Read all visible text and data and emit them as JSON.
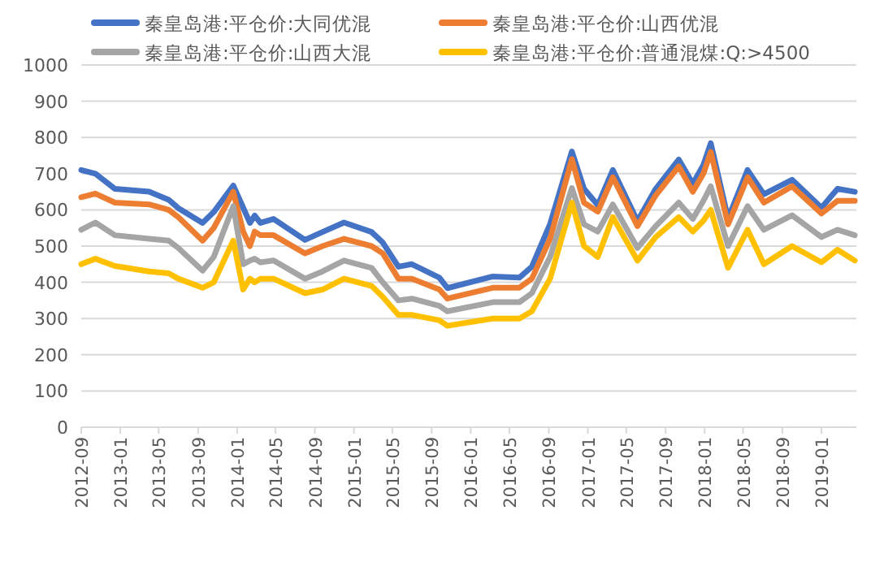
{
  "chart_data": {
    "type": "line",
    "x": [
      "2012-09-01",
      "2012-10-15",
      "2012-12-15",
      "2013-04-01",
      "2013-06-01",
      "2013-07-01",
      "2013-09-15",
      "2013-10-20",
      "2013-12-20",
      "2014-01-20",
      "2014-02-10",
      "2014-02-25",
      "2014-03-15",
      "2014-04-25",
      "2014-08-01",
      "2014-09-25",
      "2014-12-01",
      "2015-02-25",
      "2015-04-01",
      "2015-05-20",
      "2015-07-01",
      "2015-09-25",
      "2015-10-20",
      "2016-03-10",
      "2016-06-01",
      "2016-07-10",
      "2016-09-05",
      "2016-11-12",
      "2016-12-20",
      "2017-02-01",
      "2017-03-20",
      "2017-06-05",
      "2017-08-01",
      "2017-10-12",
      "2017-11-25",
      "2017-12-28",
      "2018-01-20",
      "2018-03-15",
      "2018-05-15",
      "2018-07-05",
      "2018-10-01",
      "2019-01-01",
      "2019-02-20",
      "2019-04-15"
    ],
    "series": [
      {
        "name": "秦皇岛港:平仓价:大同优混",
        "color": "#4472c4",
        "values": [
          710,
          700,
          658,
          650,
          628,
          605,
          564,
          594,
          667,
          606,
          564,
          584,
          564,
          575,
          517,
          539,
          565,
          539,
          510,
          443,
          450,
          413,
          384,
          416,
          413,
          443,
          561,
          761,
          658,
          613,
          710,
          569,
          658,
          739,
          672,
          724,
          784,
          576,
          710,
          643,
          683,
          606,
          658,
          650
        ]
      },
      {
        "name": "秦皇岛港:平仓价:山西优混",
        "color": "#ed7d31",
        "values": [
          635,
          645,
          620,
          615,
          600,
          580,
          515,
          550,
          650,
          540,
          500,
          540,
          530,
          530,
          480,
          500,
          520,
          500,
          480,
          410,
          410,
          380,
          355,
          385,
          385,
          410,
          520,
          740,
          620,
          595,
          690,
          555,
          640,
          720,
          650,
          700,
          760,
          560,
          690,
          620,
          665,
          590,
          625,
          625
        ]
      },
      {
        "name": "秦皇岛港:平仓价:山西大混",
        "color": "#a5a5a5",
        "values": [
          545,
          565,
          530,
          520,
          515,
          495,
          432,
          470,
          610,
          450,
          460,
          465,
          455,
          460,
          410,
          430,
          460,
          440,
          400,
          350,
          355,
          335,
          320,
          345,
          345,
          370,
          470,
          660,
          560,
          540,
          615,
          495,
          555,
          620,
          575,
          625,
          665,
          500,
          610,
          545,
          585,
          525,
          545,
          530
        ]
      },
      {
        "name": "秦皇岛港:平仓价:普通混煤:Q:>4500",
        "color": "#ffc000",
        "values": [
          450,
          465,
          445,
          430,
          425,
          410,
          385,
          400,
          515,
          380,
          410,
          400,
          410,
          410,
          370,
          380,
          410,
          390,
          360,
          310,
          310,
          295,
          280,
          300,
          300,
          320,
          410,
          620,
          500,
          470,
          580,
          460,
          525,
          580,
          540,
          570,
          600,
          440,
          545,
          450,
          500,
          455,
          490,
          460
        ]
      }
    ],
    "xlim": [
      "2012-09-01",
      "2019-04-20"
    ],
    "xticks": [
      "2012-09",
      "2013-01",
      "2013-05",
      "2013-09",
      "2014-01",
      "2014-05",
      "2014-09",
      "2015-01",
      "2015-05",
      "2015-09",
      "2016-01",
      "2016-05",
      "2016-09",
      "2017-01",
      "2017-05",
      "2017-09",
      "2018-01",
      "2018-05",
      "2018-09",
      "2019-01"
    ],
    "ylim": [
      0,
      1000
    ],
    "yticks": [
      0,
      100,
      200,
      300,
      400,
      500,
      600,
      700,
      800,
      900,
      1000
    ],
    "grid": "y",
    "legend": "top",
    "line_style": "solid",
    "marker": "none"
  }
}
